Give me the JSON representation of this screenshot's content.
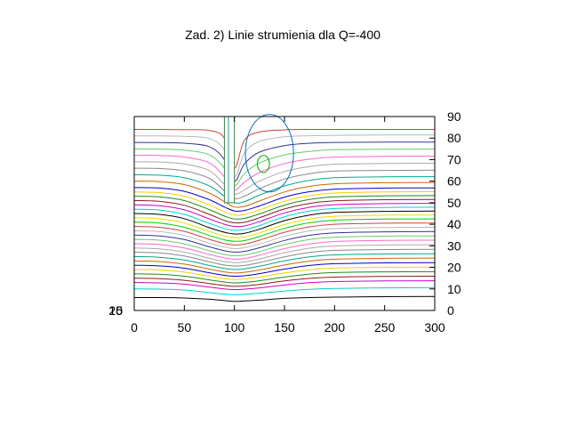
{
  "chart_data": {
    "type": "line",
    "title": "Zad. 2) Linie strumienia dla Q=-400",
    "xlabel": "",
    "ylabel": "",
    "xlim": [
      0,
      300
    ],
    "ylim": [
      0,
      90
    ],
    "x_ticks": [
      "0",
      "50",
      "100",
      "150",
      "200",
      "250",
      "300"
    ],
    "y_ticks_right": [
      "0",
      "10",
      "20",
      "30",
      "40",
      "50",
      "60",
      "70",
      "80",
      "90"
    ],
    "overlapping_left_labels": [
      "25",
      "15",
      "10"
    ],
    "grid": false,
    "legend": "none",
    "obstacle": {
      "x": [
        90,
        100
      ],
      "y": [
        50,
        90
      ]
    },
    "colors": [
      "#000000",
      "#00cfcf",
      "#cc00cc",
      "#8b1a1a",
      "#1a8b1a",
      "#f0d000",
      "#0000cc",
      "#cc6600",
      "#00aa88",
      "#888888",
      "#aaaaaa",
      "#ff66cc",
      "#66cc66",
      "#333399",
      "#b8b8b8",
      "#d04040",
      "#00d000",
      "#e0e000"
    ],
    "streamlines": {
      "x": [
        0,
        25,
        50,
        75,
        90,
        100,
        110,
        125,
        150,
        175,
        200,
        250,
        300
      ],
      "series": [
        {
          "values": [
            6,
            6,
            5.8,
            5.2,
            4.6,
            4.2,
            4.4,
            4.8,
            5.6,
            6,
            6.2,
            6.4,
            6.5
          ]
        },
        {
          "values": [
            10,
            9.9,
            9.5,
            8.3,
            7.6,
            7.3,
            7.5,
            8,
            9,
            9.8,
            10.2,
            10.5,
            10.6
          ]
        },
        {
          "values": [
            13,
            12.8,
            12.2,
            10.8,
            10,
            9.7,
            9.9,
            10.5,
            11.8,
            12.9,
            13.4,
            13.7,
            13.8
          ]
        },
        {
          "values": [
            15,
            14.8,
            14,
            12.5,
            11.6,
            11.2,
            11.4,
            12.1,
            13.7,
            14.9,
            15.5,
            15.8,
            15.9
          ]
        },
        {
          "values": [
            17,
            16.8,
            15.9,
            14.2,
            13.2,
            12.8,
            13,
            13.8,
            15.5,
            16.9,
            17.6,
            17.9,
            18
          ]
        },
        {
          "values": [
            19,
            18.8,
            17.8,
            15.9,
            14.8,
            14.4,
            14.6,
            15.5,
            17.4,
            18.9,
            19.7,
            20,
            20.1
          ]
        },
        {
          "values": [
            21,
            20.7,
            19.6,
            17.5,
            16.3,
            15.9,
            16.1,
            17.1,
            19.2,
            20.9,
            21.7,
            22.1,
            22.2
          ]
        },
        {
          "values": [
            23,
            22.7,
            21.5,
            19.2,
            17.9,
            17.4,
            17.7,
            18.8,
            21.1,
            22.9,
            23.8,
            24.2,
            24.3
          ]
        },
        {
          "values": [
            25,
            24.7,
            23.4,
            20.9,
            19.5,
            19,
            19.3,
            20.5,
            23,
            24.9,
            25.8,
            26.2,
            26.3
          ]
        },
        {
          "values": [
            27,
            26.7,
            25.3,
            22.6,
            21.1,
            20.6,
            20.9,
            22.2,
            24.9,
            26.9,
            27.9,
            28.3,
            28.4
          ]
        },
        {
          "values": [
            29,
            28.6,
            27.1,
            24.2,
            22.7,
            22.2,
            22.5,
            23.9,
            26.8,
            28.9,
            29.9,
            30.4,
            30.5
          ]
        },
        {
          "values": [
            31,
            30.6,
            29,
            26,
            24.4,
            23.8,
            24.1,
            25.6,
            28.7,
            30.9,
            32,
            32.5,
            32.6
          ]
        },
        {
          "values": [
            33,
            32.6,
            30.9,
            27.7,
            26,
            25.4,
            25.7,
            27.3,
            30.6,
            32.9,
            34,
            34.5,
            34.6
          ]
        },
        {
          "values": [
            35,
            34.6,
            32.9,
            29.5,
            27.7,
            27.1,
            27.4,
            29.1,
            32.5,
            34.9,
            36,
            36.5,
            36.6
          ]
        },
        {
          "values": [
            37,
            36.6,
            34.8,
            31.2,
            29.4,
            28.7,
            29.1,
            30.8,
            34.4,
            36.9,
            38,
            38.5,
            38.6
          ]
        },
        {
          "values": [
            39,
            38.6,
            36.7,
            33,
            31.1,
            30.4,
            30.8,
            32.6,
            36.3,
            38.8,
            40,
            40.5,
            40.6
          ]
        },
        {
          "values": [
            41,
            40.6,
            38.6,
            34.8,
            32.8,
            32.1,
            32.4,
            34.3,
            38.1,
            40.7,
            41.9,
            42.4,
            42.5
          ]
        },
        {
          "values": [
            43,
            42.6,
            40.6,
            36.6,
            34.6,
            33.8,
            34.1,
            36,
            39.9,
            42.5,
            43.7,
            44.2,
            44.3
          ]
        },
        {
          "values": [
            45,
            44.6,
            42.6,
            38.4,
            36.3,
            35.5,
            35.8,
            37.7,
            41.7,
            44.3,
            45.5,
            46,
            46.1
          ]
        },
        {
          "values": [
            47,
            46.6,
            44.6,
            40.4,
            38.1,
            37.2,
            37.5,
            39.4,
            43.5,
            46.1,
            47.3,
            47.8,
            47.9
          ]
        },
        {
          "values": [
            49,
            48.6,
            46.7,
            42.5,
            40,
            39,
            39.2,
            41.2,
            45.3,
            47.9,
            49.1,
            49.6,
            49.7
          ]
        },
        {
          "values": [
            51,
            50.6,
            48.8,
            44.6,
            41.8,
            40.7,
            40.9,
            43,
            47.1,
            49.7,
            50.9,
            51.4,
            51.5
          ]
        },
        {
          "values": [
            53,
            52.7,
            51,
            46.8,
            43.8,
            42.5,
            42.7,
            44.8,
            48.9,
            51.5,
            52.7,
            53.2,
            53.3
          ]
        },
        {
          "values": [
            55,
            54.7,
            53.1,
            49,
            45.8,
            44.3,
            44.5,
            46.6,
            50.7,
            53.3,
            54.5,
            55,
            55.1
          ]
        },
        {
          "values": [
            57,
            56.8,
            55.3,
            51.4,
            48,
            46.2,
            46.4,
            48.5,
            52.6,
            55.1,
            56.3,
            56.8,
            56.9
          ]
        },
        {
          "values": [
            60,
            59.8,
            58.4,
            54.5,
            50.5,
            48,
            48.3,
            50.8,
            55,
            57.6,
            58.8,
            59.3,
            59.4
          ]
        },
        {
          "values": [
            63,
            62.8,
            61.6,
            57.8,
            53,
            50,
            50.5,
            53.5,
            57.8,
            60.4,
            61.6,
            62,
            62.1
          ]
        },
        {
          "values": [
            66,
            65.9,
            64.8,
            61.3,
            55.5,
            52,
            53,
            56.5,
            61,
            63.5,
            64.7,
            65,
            65.1
          ]
        },
        {
          "values": [
            69,
            68.9,
            68,
            64.9,
            58.5,
            54,
            56,
            60,
            64.5,
            66.8,
            67.9,
            68.2,
            68.3
          ]
        },
        {
          "values": [
            72,
            71.9,
            71.2,
            68.5,
            62,
            56,
            59.5,
            64,
            68.2,
            70.2,
            71.2,
            71.5,
            71.6
          ]
        },
        {
          "values": [
            75,
            74.9,
            74.4,
            72.2,
            66,
            58,
            63.5,
            68.5,
            72.2,
            73.8,
            74.6,
            74.8,
            74.9
          ]
        },
        {
          "values": [
            78,
            77.9,
            77.6,
            76,
            70,
            60,
            68,
            73.5,
            76.5,
            77.6,
            78,
            78.1,
            78.1
          ]
        },
        {
          "values": [
            81,
            81,
            80.8,
            79.8,
            74.5,
            62,
            73,
            78.5,
            80.6,
            81.1,
            81.3,
            81.4,
            81.4
          ]
        },
        {
          "values": [
            84,
            84,
            83.9,
            83.5,
            80,
            66,
            79,
            82.8,
            83.8,
            84,
            84,
            84,
            84
          ]
        }
      ]
    },
    "closed_contours": [
      {
        "center": [
          135,
          73
        ],
        "radii": [
          24,
          18
        ]
      },
      {
        "center": [
          129,
          68
        ],
        "radii": [
          6,
          4
        ]
      }
    ]
  }
}
